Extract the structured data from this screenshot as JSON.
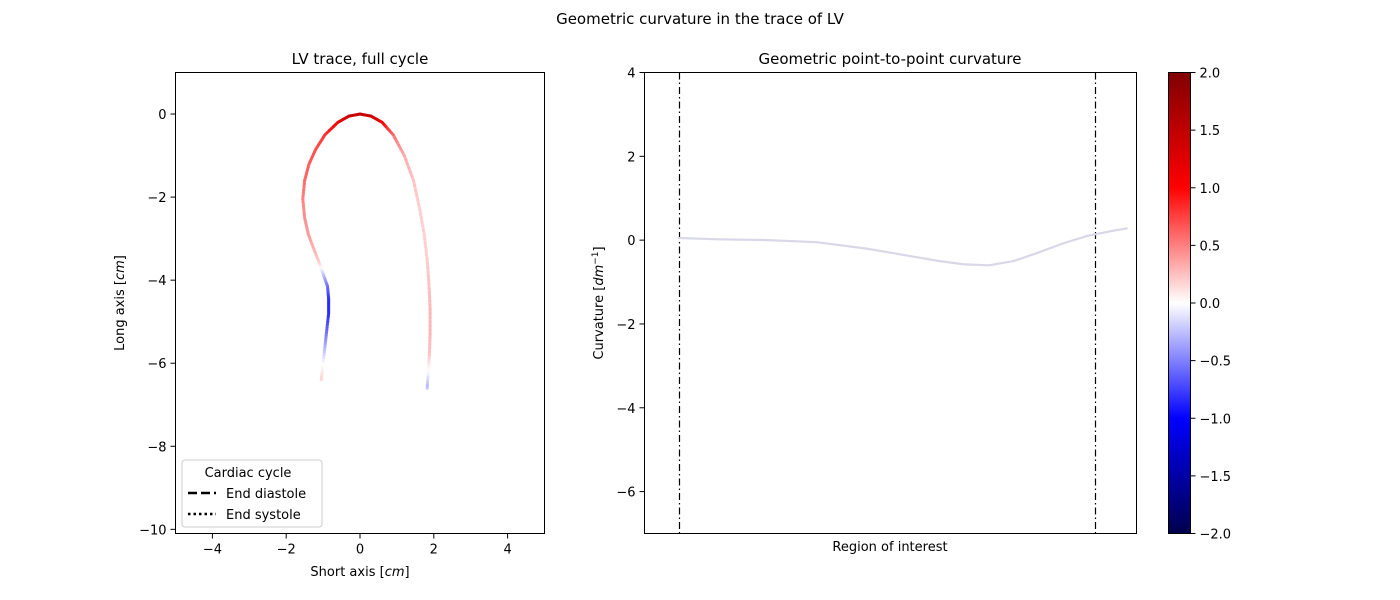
{
  "figure_title": "Geometric curvature in the trace of LV",
  "chart_data": [
    {
      "type": "line",
      "title": "LV trace, full cycle",
      "xlabel": "Short axis [cm]",
      "xlabel_parts": {
        "text": "Short axis ",
        "unit": "cm"
      },
      "ylabel": "Long axis [cm]",
      "ylabel_parts": {
        "text": "Long axis ",
        "unit": "cm"
      },
      "xlim": [
        -5,
        5
      ],
      "ylim": [
        -10.1,
        1.0
      ],
      "xticks": [
        -4,
        -2,
        0,
        2,
        4
      ],
      "xtick_labels": [
        "−4",
        "−2",
        "0",
        "2",
        "4"
      ],
      "yticks": [
        0,
        -2,
        -4,
        -6,
        -8,
        -10
      ],
      "ytick_labels": [
        "0",
        "−2",
        "−4",
        "−6",
        "−8",
        "−10"
      ],
      "grid": false,
      "trace": {
        "x": [
          -1.05,
          -1.0,
          -0.95,
          -0.9,
          -0.85,
          -0.85,
          -0.88,
          -1.0,
          -1.12,
          -1.25,
          -1.4,
          -1.5,
          -1.55,
          -1.5,
          -1.38,
          -1.2,
          -0.95,
          -0.6,
          -0.3,
          0.0,
          0.3,
          0.6,
          0.9,
          1.2,
          1.45,
          1.62,
          1.74,
          1.82,
          1.87,
          1.9,
          1.9,
          1.88,
          1.85,
          1.82
        ],
        "y": [
          -6.4,
          -6.0,
          -5.6,
          -5.2,
          -4.8,
          -4.45,
          -4.15,
          -3.85,
          -3.55,
          -3.25,
          -2.9,
          -2.5,
          -2.05,
          -1.6,
          -1.2,
          -0.85,
          -0.5,
          -0.2,
          -0.05,
          0.0,
          -0.05,
          -0.2,
          -0.5,
          -1.0,
          -1.6,
          -2.3,
          -2.9,
          -3.5,
          -4.1,
          -4.7,
          -5.3,
          -5.8,
          -6.2,
          -6.6
        ],
        "curvature": [
          0.2,
          0.0,
          -0.3,
          -0.6,
          -0.85,
          -0.85,
          -0.6,
          -0.25,
          0.2,
          0.3,
          0.4,
          0.45,
          0.5,
          0.6,
          0.65,
          0.7,
          0.8,
          1.1,
          1.4,
          1.5,
          1.4,
          1.1,
          0.6,
          0.35,
          0.25,
          0.2,
          0.2,
          0.2,
          0.25,
          0.3,
          0.3,
          0.25,
          0.0,
          -0.3
        ]
      },
      "legend": {
        "title": "Cardiac cycle",
        "position": "lower-left",
        "entries": [
          {
            "label": "End diastole",
            "style": "dashed"
          },
          {
            "label": "End systole",
            "style": "dotted"
          }
        ]
      }
    },
    {
      "type": "line",
      "title": "Geometric point-to-point curvature",
      "xlabel": "Region of interest",
      "ylabel": "Curvature [dm^-1]",
      "ylabel_parts": {
        "text": "Curvature ",
        "unit": "dm",
        "exp": "−1"
      },
      "ylim": [
        -7,
        4
      ],
      "xlim": [
        0,
        1
      ],
      "yticks": [
        4,
        2,
        0,
        -2,
        -4,
        -6
      ],
      "ytick_labels": [
        "4",
        "2",
        "0",
        "−2",
        "−4",
        "−6"
      ],
      "xticks": [],
      "grid": false,
      "curve": {
        "x": [
          0.07,
          0.15,
          0.25,
          0.35,
          0.45,
          0.55,
          0.6,
          0.65,
          0.7,
          0.75,
          0.8,
          0.85,
          0.9,
          0.95,
          0.98
        ],
        "y": [
          0.05,
          0.02,
          0.0,
          -0.05,
          -0.2,
          -0.4,
          -0.5,
          -0.58,
          -0.6,
          -0.5,
          -0.3,
          -0.08,
          0.1,
          0.22,
          0.28
        ],
        "color": "#d8d8e8"
      },
      "vlines": [
        {
          "x": 0.07,
          "style": "dashdot"
        },
        {
          "x": 0.915,
          "style": "dashdot"
        }
      ]
    }
  ],
  "colorbar": {
    "cmap": "seismic",
    "vmin": -2.0,
    "vmax": 2.0,
    "ticks": [
      2.0,
      1.5,
      1.0,
      0.5,
      0.0,
      -0.5,
      -1.0,
      -1.5,
      -2.0
    ],
    "tick_labels": [
      "2.0",
      "1.5",
      "1.0",
      "0.5",
      "0.0",
      "−0.5",
      "−1.0",
      "−1.5",
      "−2.0"
    ],
    "colors": {
      "low": "#00004c",
      "blue": "#0000ff",
      "mid": "#ffffff",
      "red": "#ff0000",
      "high": "#800000"
    }
  }
}
